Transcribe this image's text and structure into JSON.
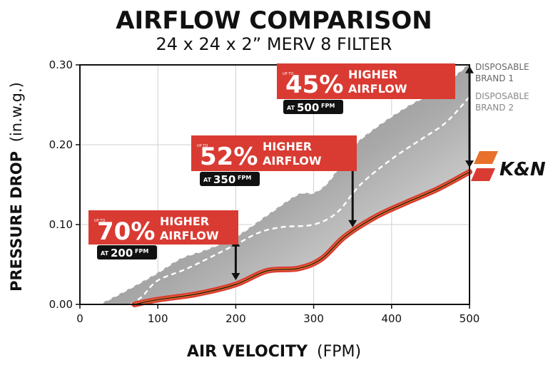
{
  "chart_data": {
    "type": "line",
    "title": "AIRFLOW COMPARISON",
    "subtitle": "24 x 24 x 2” MERV 8 FILTER",
    "xlabel_bold": "AIR VELOCITY",
    "xlabel_unit": "(FPM)",
    "ylabel_bold": "PRESSURE DROP",
    "ylabel_unit": "(in.w.g.)",
    "xlim": [
      0,
      500
    ],
    "ylim": [
      0,
      0.3
    ],
    "x_ticks": [
      0,
      100,
      200,
      300,
      400,
      500
    ],
    "x_tick_labels": [
      "0",
      "100",
      "200",
      "300",
      "400",
      "500"
    ],
    "y_ticks": [
      0,
      0.1,
      0.2,
      0.3
    ],
    "y_tick_labels": [
      "0.00",
      "0.10",
      "0.20",
      "0.30"
    ],
    "grid": true,
    "series": [
      {
        "name": "DISPOSABLE BRAND 1",
        "name_lines": [
          "DISPOSABLE",
          "BRAND 1"
        ],
        "x": [
          25,
          60,
          100,
          130,
          160,
          200,
          240,
          280,
          300,
          320,
          350,
          380,
          420,
          460,
          500
        ],
        "y": [
          0.0,
          0.018,
          0.04,
          0.058,
          0.068,
          0.085,
          0.112,
          0.138,
          0.14,
          0.155,
          0.197,
          0.222,
          0.248,
          0.27,
          0.302
        ],
        "color": "#666666",
        "style": "dashed"
      },
      {
        "name": "DISPOSABLE BRAND 2",
        "name_lines": [
          "DISPOSABLE",
          "BRAND 2"
        ],
        "x": [
          65,
          80,
          100,
          140,
          200,
          230,
          260,
          300,
          330,
          360,
          400,
          440,
          470,
          500
        ],
        "y": [
          0.0,
          0.01,
          0.03,
          0.046,
          0.075,
          0.09,
          0.097,
          0.1,
          0.115,
          0.15,
          0.182,
          0.208,
          0.228,
          0.26
        ],
        "color": "#888888",
        "style": "dashed"
      },
      {
        "name": "K&N",
        "x": [
          70,
          100,
          150,
          200,
          240,
          280,
          310,
          340,
          380,
          420,
          460,
          500
        ],
        "y": [
          0.0,
          0.006,
          0.013,
          0.025,
          0.042,
          0.045,
          0.057,
          0.085,
          0.11,
          0.128,
          0.145,
          0.166
        ],
        "color": "#d93b33",
        "style": "solid"
      }
    ],
    "callouts": [
      {
        "at_fpm": 200,
        "upto": "UP TO",
        "percent": "70%",
        "line1": "HIGHER",
        "line2": "AIRFLOW",
        "at_prefix": "AT",
        "at_value": "200",
        "at_unit": "FPM"
      },
      {
        "at_fpm": 350,
        "upto": "UP TO",
        "percent": "52%",
        "line1": "HIGHER",
        "line2": "AIRFLOW",
        "at_prefix": "AT",
        "at_value": "350",
        "at_unit": "FPM"
      },
      {
        "at_fpm": 500,
        "upto": "UP TO",
        "percent": "45%",
        "line1": "HIGHER",
        "line2": "AIRFLOW",
        "at_prefix": "AT",
        "at_value": "500",
        "at_unit": "FPM"
      }
    ],
    "logo_text": "K&N",
    "colors": {
      "accent": "#d93b33",
      "orange": "#e8702a",
      "black": "#111111"
    }
  }
}
